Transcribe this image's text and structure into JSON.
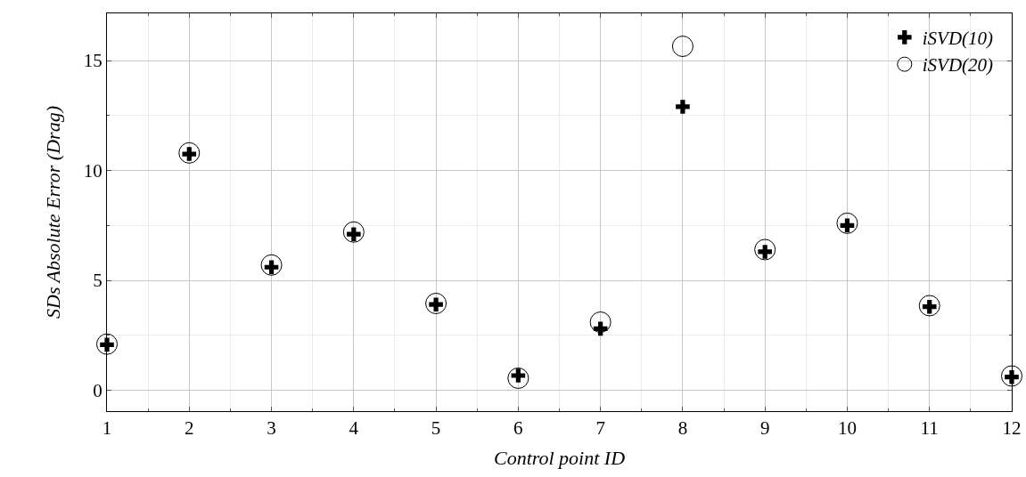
{
  "chart_data": {
    "type": "scatter",
    "xlabel": "Control point ID",
    "ylabel": "SDs Absolute Error (Drag)",
    "x": [
      1,
      2,
      3,
      4,
      5,
      6,
      7,
      8,
      9,
      10,
      11,
      12
    ],
    "series": [
      {
        "name": "iSVD(10)",
        "color": "#000000",
        "marker": "cross",
        "values": [
          2.07,
          10.75,
          5.6,
          7.1,
          3.9,
          0.67,
          2.8,
          12.9,
          6.3,
          7.5,
          3.8,
          0.6
        ]
      },
      {
        "name": "iSVD(20)",
        "color": "#000000",
        "marker": "circle",
        "values": [
          2.1,
          10.8,
          5.7,
          7.2,
          3.95,
          0.55,
          3.1,
          15.65,
          6.4,
          7.6,
          3.85,
          0.65
        ]
      }
    ],
    "xlim": [
      1,
      12
    ],
    "xticks": [
      1,
      2,
      3,
      4,
      5,
      6,
      7,
      8,
      9,
      10,
      11,
      12
    ],
    "ylim": [
      -0.95,
      17.15
    ],
    "yticks": [
      0,
      5,
      10,
      15
    ],
    "grid": true,
    "legend": "top right"
  }
}
